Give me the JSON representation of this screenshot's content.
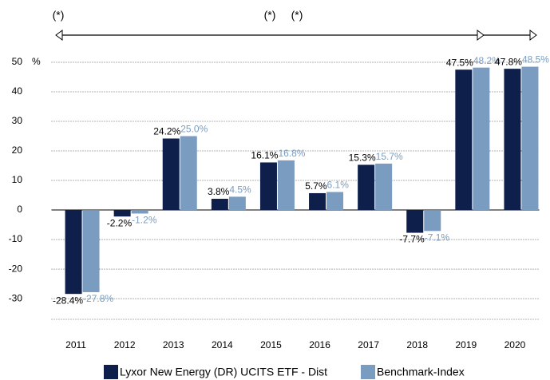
{
  "chart_data": {
    "type": "bar",
    "categories": [
      "2011",
      "2012",
      "2013",
      "2014",
      "2015",
      "2016",
      "2017",
      "2018",
      "2019",
      "2020"
    ],
    "series": [
      {
        "name": "Lyxor New Energy (DR) UCITS ETF - Dist",
        "color": "#0d1f4a",
        "values": [
          -28.4,
          -2.2,
          24.2,
          3.8,
          16.1,
          5.7,
          15.3,
          -7.7,
          47.5,
          47.8
        ],
        "value_labels": [
          "-28.4%",
          "-2.2%",
          "24.2%",
          "3.8%",
          "16.1%",
          "5.7%",
          "15.3%",
          "-7.7%",
          "47.5%",
          "47.8%"
        ]
      },
      {
        "name": "Benchmark-Index",
        "color": "#7a9cc0",
        "values": [
          -27.8,
          -1.2,
          25.0,
          4.5,
          16.8,
          6.1,
          15.7,
          -7.1,
          48.2,
          48.5
        ],
        "value_labels": [
          "-27.8%",
          "-1.2%",
          "25.0%",
          "4.5%",
          "16.8%",
          "6.1%",
          "15.7%",
          "-7.1%",
          "48.2%",
          "48.5%"
        ]
      }
    ],
    "y_unit": "%",
    "annotations": [
      "(*)",
      "(*)",
      "(*)"
    ],
    "ylim": [
      -37,
      55
    ],
    "yticks": [
      -30,
      -20,
      -10,
      0,
      10,
      20,
      30,
      40,
      50
    ],
    "grid": true
  }
}
